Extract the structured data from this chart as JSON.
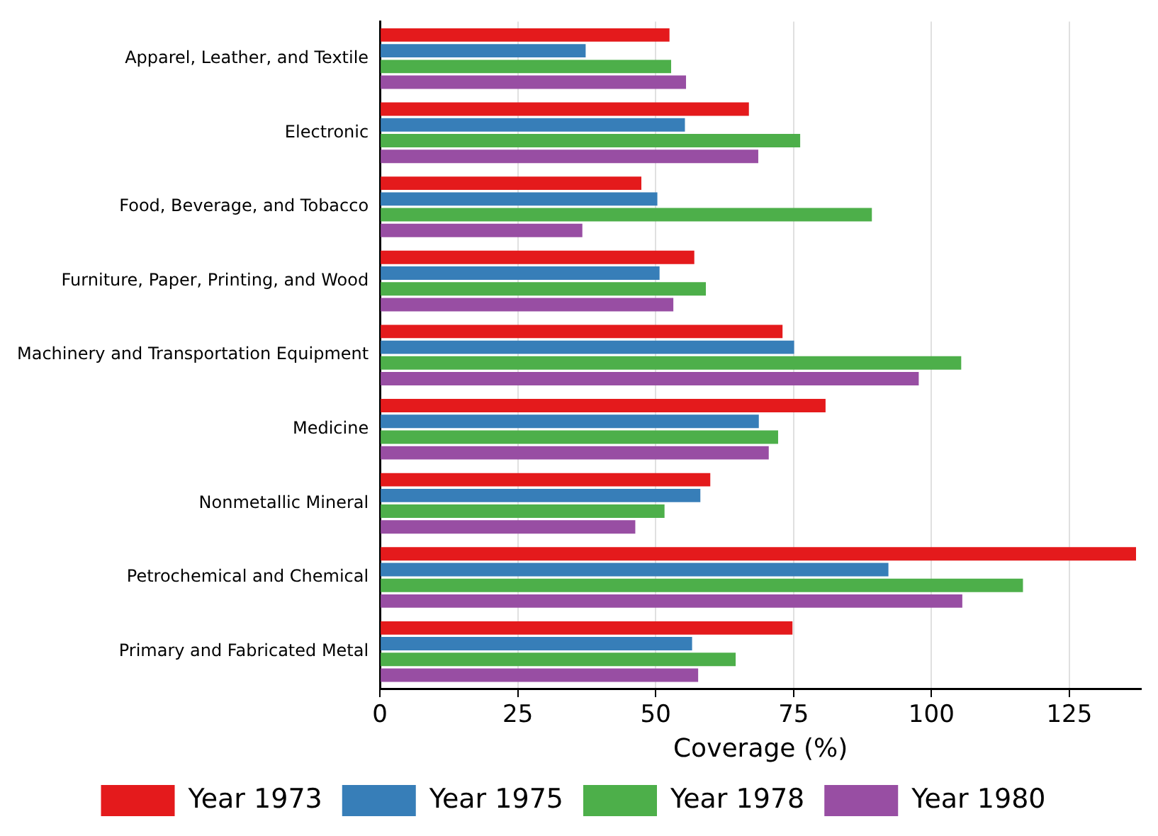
{
  "chart_data": {
    "type": "bar",
    "orientation": "horizontal",
    "xlabel": "Coverage (%)",
    "categories": [
      "Apparel, Leather, and Textile",
      "Electronic",
      "Food, Beverage, and Tobacco",
      "Furniture, Paper, Printing, and Wood",
      "Machinery and Transportation Equipment",
      "Medicine",
      "Nonmetallic Mineral",
      "Petrochemical and Chemical",
      "Primary and Fabricated Metal"
    ],
    "series": [
      {
        "name": "Year 1973",
        "color": "#e41a1c",
        "values": [
          52.5,
          66.9,
          47.4,
          57.0,
          73.0,
          80.8,
          59.9,
          137.1,
          74.8
        ]
      },
      {
        "name": "Year 1975",
        "color": "#377eb8",
        "values": [
          37.3,
          55.3,
          50.3,
          50.7,
          75.1,
          68.7,
          58.1,
          92.2,
          56.6
        ]
      },
      {
        "name": "Year 1978",
        "color": "#4daf4a",
        "values": [
          52.8,
          76.2,
          89.2,
          59.1,
          105.4,
          72.2,
          51.6,
          116.6,
          64.5
        ]
      },
      {
        "name": "Year 1980",
        "color": "#984ea3",
        "values": [
          55.5,
          68.6,
          36.7,
          53.2,
          97.7,
          70.5,
          46.3,
          105.6,
          57.7
        ]
      }
    ],
    "xlim": [
      0,
      138
    ],
    "xticks": [
      0,
      25,
      50,
      75,
      100,
      125
    ],
    "grid": "x",
    "legend": "bottom"
  }
}
